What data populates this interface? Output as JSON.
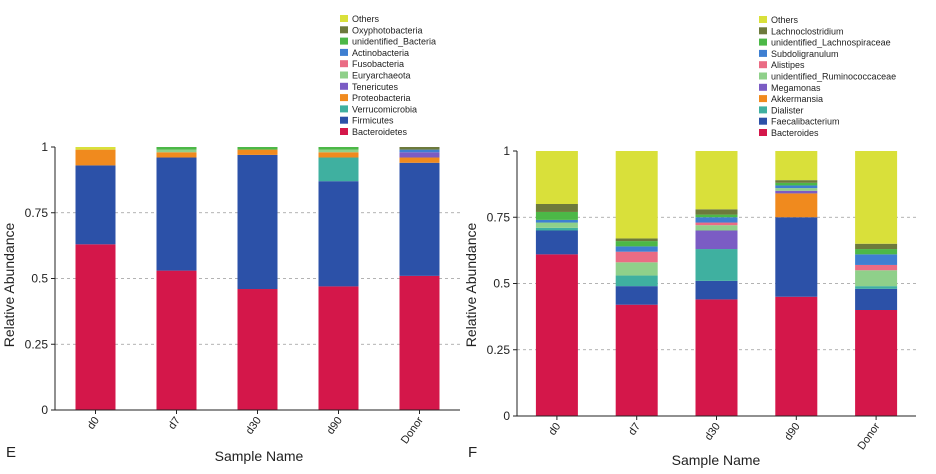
{
  "panels": [
    {
      "letter": "E"
    },
    {
      "letter": "F"
    }
  ],
  "chart_data": [
    {
      "type": "bar",
      "stacked": true,
      "panel": "E",
      "title": "",
      "xlabel": "Sample Name",
      "ylabel": "Relative Abundance",
      "ylim": [
        0,
        1
      ],
      "yticks": [
        "0",
        "0.25",
        "0.5",
        "0.75",
        "1"
      ],
      "grid": "dashed horizontal at 0.25, 0.5, 0.75",
      "legend_position": "top-right",
      "categories": [
        "d0",
        "d7",
        "d30",
        "d90",
        "Donor"
      ],
      "series": [
        {
          "name": "Bacteroidetes",
          "color": "#d4174a",
          "values": [
            0.63,
            0.53,
            0.46,
            0.47,
            0.51
          ]
        },
        {
          "name": "Firmicutes",
          "color": "#2c51a8",
          "values": [
            0.3,
            0.43,
            0.51,
            0.4,
            0.43
          ]
        },
        {
          "name": "Verrucomicrobia",
          "color": "#3fb0a0",
          "values": [
            0.0,
            0.0,
            0.0,
            0.09,
            0.0
          ]
        },
        {
          "name": "Proteobacteria",
          "color": "#f08a1e",
          "values": [
            0.06,
            0.02,
            0.02,
            0.02,
            0.02
          ]
        },
        {
          "name": "Tenericutes",
          "color": "#7b5cc4",
          "values": [
            0.0,
            0.0,
            0.0,
            0.0,
            0.02
          ]
        },
        {
          "name": "Euryarchaeota",
          "color": "#8fd08a",
          "values": [
            0.0,
            0.01,
            0.0,
            0.01,
            0.0
          ]
        },
        {
          "name": "Fusobacteria",
          "color": "#ea6c84",
          "values": [
            0.0,
            0.0,
            0.0,
            0.0,
            0.0
          ]
        },
        {
          "name": "Actinobacteria",
          "color": "#3e7fd1",
          "values": [
            0.0,
            0.0,
            0.0,
            0.0,
            0.01
          ]
        },
        {
          "name": "unidentified_Bacteria",
          "color": "#4cb847",
          "values": [
            0.0,
            0.01,
            0.01,
            0.01,
            0.0
          ]
        },
        {
          "name": "Oxyphotobacteria",
          "color": "#6d7a3c",
          "values": [
            0.0,
            0.0,
            0.0,
            0.0,
            0.01
          ]
        },
        {
          "name": "Others",
          "color": "#d9e03a",
          "values": [
            0.01,
            0.0,
            0.0,
            0.0,
            0.0
          ]
        }
      ]
    },
    {
      "type": "bar",
      "stacked": true,
      "panel": "F",
      "title": "",
      "xlabel": "Sample Name",
      "ylabel": "Relative Abundance",
      "ylim": [
        0,
        1
      ],
      "yticks": [
        "0",
        "0.25",
        "0.5",
        "0.75",
        "1"
      ],
      "grid": "dashed horizontal at 0.25, 0.5, 0.75",
      "legend_position": "top-right",
      "categories": [
        "d0",
        "d7",
        "d30",
        "d90",
        "Donor"
      ],
      "series": [
        {
          "name": "Bacteroides",
          "color": "#d4174a",
          "values": [
            0.61,
            0.42,
            0.44,
            0.45,
            0.4
          ]
        },
        {
          "name": "Faecalibacterium",
          "color": "#2c51a8",
          "values": [
            0.09,
            0.07,
            0.07,
            0.3,
            0.08
          ]
        },
        {
          "name": "Dialister",
          "color": "#3fb0a0",
          "values": [
            0.01,
            0.04,
            0.12,
            0.0,
            0.01
          ]
        },
        {
          "name": "Akkermansia",
          "color": "#f08a1e",
          "values": [
            0.0,
            0.0,
            0.0,
            0.09,
            0.0
          ]
        },
        {
          "name": "Megamonas",
          "color": "#7b5cc4",
          "values": [
            0.0,
            0.0,
            0.07,
            0.01,
            0.0
          ]
        },
        {
          "name": "unidentified_Ruminococcaceae",
          "color": "#8fd08a",
          "values": [
            0.02,
            0.05,
            0.02,
            0.01,
            0.06
          ]
        },
        {
          "name": "Alistipes",
          "color": "#ea6c84",
          "values": [
            0.0,
            0.04,
            0.01,
            0.0,
            0.02
          ]
        },
        {
          "name": "Subdoligranulum",
          "color": "#3e7fd1",
          "values": [
            0.01,
            0.02,
            0.02,
            0.01,
            0.04
          ]
        },
        {
          "name": "unidentified_Lachnospiraceae",
          "color": "#4cb847",
          "values": [
            0.03,
            0.02,
            0.01,
            0.01,
            0.02
          ]
        },
        {
          "name": "Lachnoclostridium",
          "color": "#6d7a3c",
          "values": [
            0.03,
            0.01,
            0.02,
            0.01,
            0.02
          ]
        },
        {
          "name": "Others",
          "color": "#d9e03a",
          "values": [
            0.2,
            0.33,
            0.22,
            0.11,
            0.35
          ]
        }
      ]
    }
  ]
}
